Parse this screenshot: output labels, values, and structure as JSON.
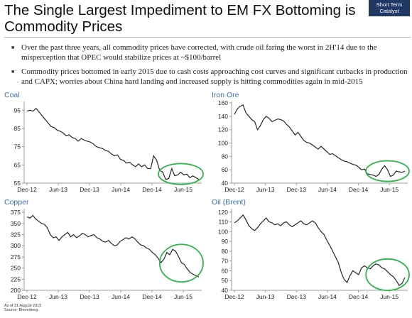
{
  "title": "The Single Largest Impediment to EM FX Bottoming is Commodity Prices",
  "badge": "Short Term Catalyst",
  "bullets": [
    "Over the past three years, all commodity prices have corrected, with crude oil faring the worst in 2H'14 due to the misperception that OPEC would stabilize prices at ~$100/barrel",
    "Commodity prices bottomed in early 2015 due to cash costs approaching cost curves and significant cutbacks in production and CAPX; worries about China hard landing and increased supply is hitting commodities again in mid-2015"
  ],
  "footnote": {
    "asof": "As of 31 August 2015",
    "source": "Source: Bloomberg"
  },
  "chart_data": [
    {
      "type": "line",
      "title": "Coal",
      "xticks": [
        "Dec-12",
        "Jun-13",
        "Dec-13",
        "Jun-14",
        "Dec-14",
        "Jun-15"
      ],
      "yticks": [
        "95",
        "85",
        "75",
        "65",
        "55"
      ],
      "ylim": [
        55,
        99
      ],
      "highlight": "Jun-15",
      "series": [
        {
          "values": [
            94.5,
            95,
            94.5,
            96,
            94,
            92,
            90,
            88,
            86,
            85.5,
            84,
            83.5,
            82.5,
            81,
            81.5,
            80,
            79.5,
            78,
            79.5,
            78.5,
            78,
            77.5,
            76.5,
            75,
            74.5,
            74,
            73,
            72.5,
            71,
            70,
            70.5,
            68,
            67.5,
            66,
            66.5,
            65,
            64,
            65.5,
            64,
            65,
            63,
            63,
            70,
            67.5,
            62,
            61,
            57,
            57.5,
            63,
            59,
            59.5,
            61,
            59.5,
            60,
            58,
            59,
            58,
            57
          ]
        }
      ]
    },
    {
      "type": "line",
      "title": "Iron Ore",
      "xticks": [
        "Dec-12",
        "Jun-13",
        "Dec-13",
        "Jun-14",
        "Dec-14",
        "Jun-15"
      ],
      "yticks": [
        "160",
        "140",
        "120",
        "100",
        "80",
        "60",
        "40"
      ],
      "ylim": [
        40,
        160
      ],
      "highlight": "Jun-15",
      "series": [
        {
          "values": [
            143,
            151,
            155,
            157,
            145,
            140,
            135,
            132,
            120,
            126,
            135,
            140,
            137,
            132,
            134,
            136,
            135,
            133,
            128,
            124,
            118,
            112,
            116,
            110,
            104,
            101,
            100,
            97,
            94,
            91,
            95,
            91,
            87,
            83,
            84,
            81,
            78,
            75,
            73,
            72,
            70,
            68,
            67,
            64,
            60,
            61,
            54,
            53,
            52,
            50,
            53,
            61,
            66,
            60,
            50,
            52,
            58,
            57,
            56,
            58
          ]
        }
      ]
    },
    {
      "type": "line",
      "title": "Copper",
      "xticks": [
        "Dec-12",
        "Jun-13",
        "Dec-13",
        "Jun-14",
        "Dec-14",
        "Jun-15"
      ],
      "yticks": [
        "375",
        "350",
        "325",
        "300",
        "275",
        "250",
        "225",
        "200"
      ],
      "ylim": [
        200,
        380
      ],
      "highlight": "Jun-15",
      "series": [
        {
          "values": [
            365,
            362,
            368,
            360,
            355,
            350,
            348,
            340,
            325,
            318,
            320,
            312,
            320,
            325,
            330,
            320,
            325,
            318,
            322,
            328,
            325,
            320,
            323,
            325,
            318,
            315,
            310,
            308,
            312,
            305,
            300,
            302,
            310,
            314,
            318,
            315,
            320,
            316,
            308,
            302,
            300,
            295,
            292,
            285,
            280,
            272,
            262,
            270,
            285,
            280,
            292,
            288,
            276,
            262,
            258,
            248,
            240,
            236,
            233,
            230
          ]
        }
      ]
    },
    {
      "type": "line",
      "title": "Oil (Brent)",
      "xticks": [
        "Dec-12",
        "Jun-13",
        "Dec-13",
        "Jun-14",
        "Dec-14",
        "Jun-15"
      ],
      "yticks": [
        "120",
        "110",
        "100",
        "90",
        "80",
        "70",
        "60",
        "50",
        "40"
      ],
      "ylim": [
        40,
        122
      ],
      "highlight": "Jun-15",
      "series": [
        {
          "values": [
            109,
            111,
            114,
            117,
            112,
            106,
            103,
            101,
            104,
            108,
            111,
            114,
            110,
            109,
            107,
            108,
            106,
            109,
            110,
            107,
            105,
            107,
            109,
            111,
            108,
            107,
            109,
            111,
            109,
            104,
            100,
            97,
            91,
            86,
            80,
            74,
            68,
            58,
            51,
            48,
            55,
            60,
            58,
            56,
            63,
            65,
            63,
            62,
            65,
            67,
            66,
            63,
            62,
            59,
            56,
            54,
            50,
            45,
            47,
            53
          ]
        }
      ]
    }
  ]
}
